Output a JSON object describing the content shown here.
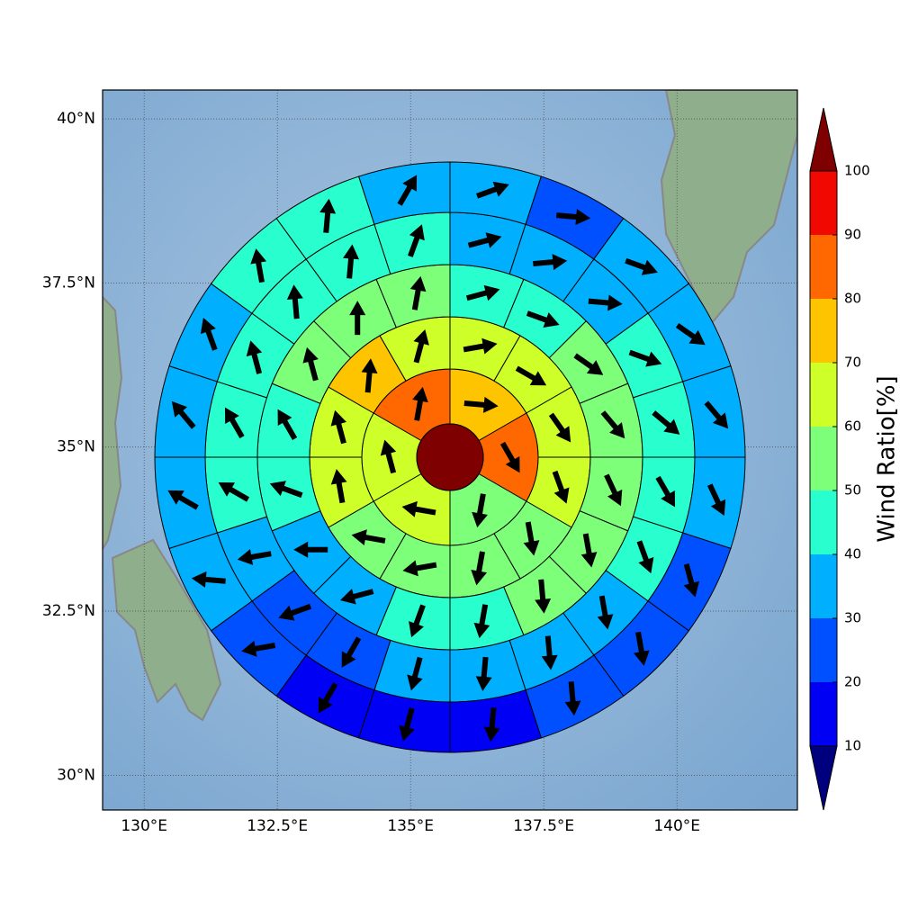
{
  "chart_data": {
    "type": "polar_sectors",
    "xlim": [
      129.22,
      142.26
    ],
    "ylim": [
      29.47,
      40.44
    ],
    "xticks": [
      {
        "value": 130,
        "label": "130°E"
      },
      {
        "value": 132.5,
        "label": "132.5°E"
      },
      {
        "value": 135,
        "label": "135°E"
      },
      {
        "value": 137.5,
        "label": "137.5°E"
      },
      {
        "value": 140,
        "label": "140°E"
      }
    ],
    "yticks": [
      {
        "value": 30,
        "label": "30°N"
      },
      {
        "value": 32.5,
        "label": "32.5°N"
      },
      {
        "value": 35,
        "label": "35°N"
      },
      {
        "value": 37.5,
        "label": "37.5°N"
      },
      {
        "value": 40,
        "label": "40°N"
      }
    ],
    "grid": true,
    "colorbar": {
      "label": "Wind Ratio[%]",
      "ticks": [
        10,
        20,
        30,
        40,
        50,
        60,
        70,
        80,
        90,
        100
      ],
      "colors": [
        "#00007f",
        "#0000f5",
        "#0050ff",
        "#00b0ff",
        "#29ffce",
        "#7dff7a",
        "#ceff29",
        "#ffc400",
        "#ff6800",
        "#f10800",
        "#7f0000"
      ]
    },
    "center": {
      "value": 100
    },
    "rings": [
      {
        "values": [
          75,
          85,
          55,
          65,
          65,
          85
        ],
        "directions": [
          95,
          150,
          190,
          280,
          345,
          10
        ]
      },
      {
        "values": [
          65,
          65,
          65,
          65,
          55,
          55,
          55,
          55,
          65,
          65,
          75,
          65
        ],
        "directions": [
          80,
          120,
          145,
          160,
          170,
          190,
          260,
          280,
          350,
          345,
          5,
          15
        ]
      },
      {
        "values": [
          45,
          45,
          55,
          55,
          55,
          55,
          55,
          45,
          45,
          35,
          35,
          45,
          45,
          55,
          55,
          55
        ],
        "directions": [
          75,
          110,
          125,
          140,
          155,
          170,
          175,
          190,
          200,
          255,
          270,
          290,
          330,
          345,
          0,
          10
        ]
      },
      {
        "values": [
          35,
          35,
          35,
          45,
          45,
          45,
          45,
          35,
          35,
          35,
          35,
          25,
          25,
          35,
          45,
          45,
          45,
          45,
          45,
          45
        ],
        "directions": [
          75,
          85,
          95,
          110,
          130,
          150,
          160,
          170,
          175,
          185,
          195,
          210,
          250,
          260,
          300,
          330,
          345,
          355,
          5,
          20
        ]
      },
      {
        "values": [
          35,
          25,
          35,
          35,
          35,
          35,
          25,
          25,
          25,
          15,
          15,
          15,
          25,
          35,
          35,
          35,
          35,
          45,
          45,
          35
        ],
        "directions": [
          70,
          95,
          110,
          125,
          140,
          155,
          165,
          170,
          175,
          185,
          195,
          210,
          260,
          275,
          300,
          320,
          340,
          350,
          5,
          30
        ]
      }
    ]
  }
}
